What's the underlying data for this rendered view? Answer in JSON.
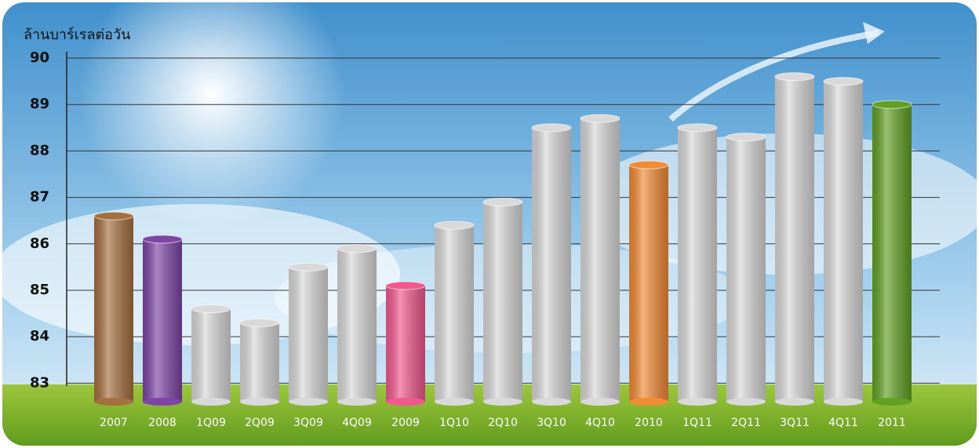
{
  "chart_data": {
    "type": "bar",
    "y_label": "ล้านบาร์เรลต่อวัน",
    "categories": [
      "2007",
      "2008",
      "1Q09",
      "2Q09",
      "3Q09",
      "4Q09",
      "2009",
      "1Q10",
      "2Q10",
      "3Q10",
      "4Q10",
      "2010",
      "1Q11",
      "2Q11",
      "3Q11",
      "4Q11",
      "2011"
    ],
    "values": [
      86.6,
      86.1,
      84.6,
      84.3,
      85.5,
      85.9,
      85.1,
      86.4,
      86.9,
      88.5,
      88.7,
      87.7,
      88.5,
      88.3,
      89.6,
      89.5,
      89.0
    ],
    "colors": [
      "#a5703f",
      "#7e44a6",
      "#d9d9d9",
      "#d9d9d9",
      "#d9d9d9",
      "#d9d9d9",
      "#f2588e",
      "#d9d9d9",
      "#d9d9d9",
      "#d9d9d9",
      "#d9d9d9",
      "#f28b34",
      "#d9d9d9",
      "#d9d9d9",
      "#d9d9d9",
      "#d9d9d9",
      "#62a024"
    ],
    "ylim": [
      82.6,
      90
    ],
    "yticks": [
      83,
      84,
      85,
      86,
      87,
      88,
      89,
      90
    ],
    "grid": true
  }
}
